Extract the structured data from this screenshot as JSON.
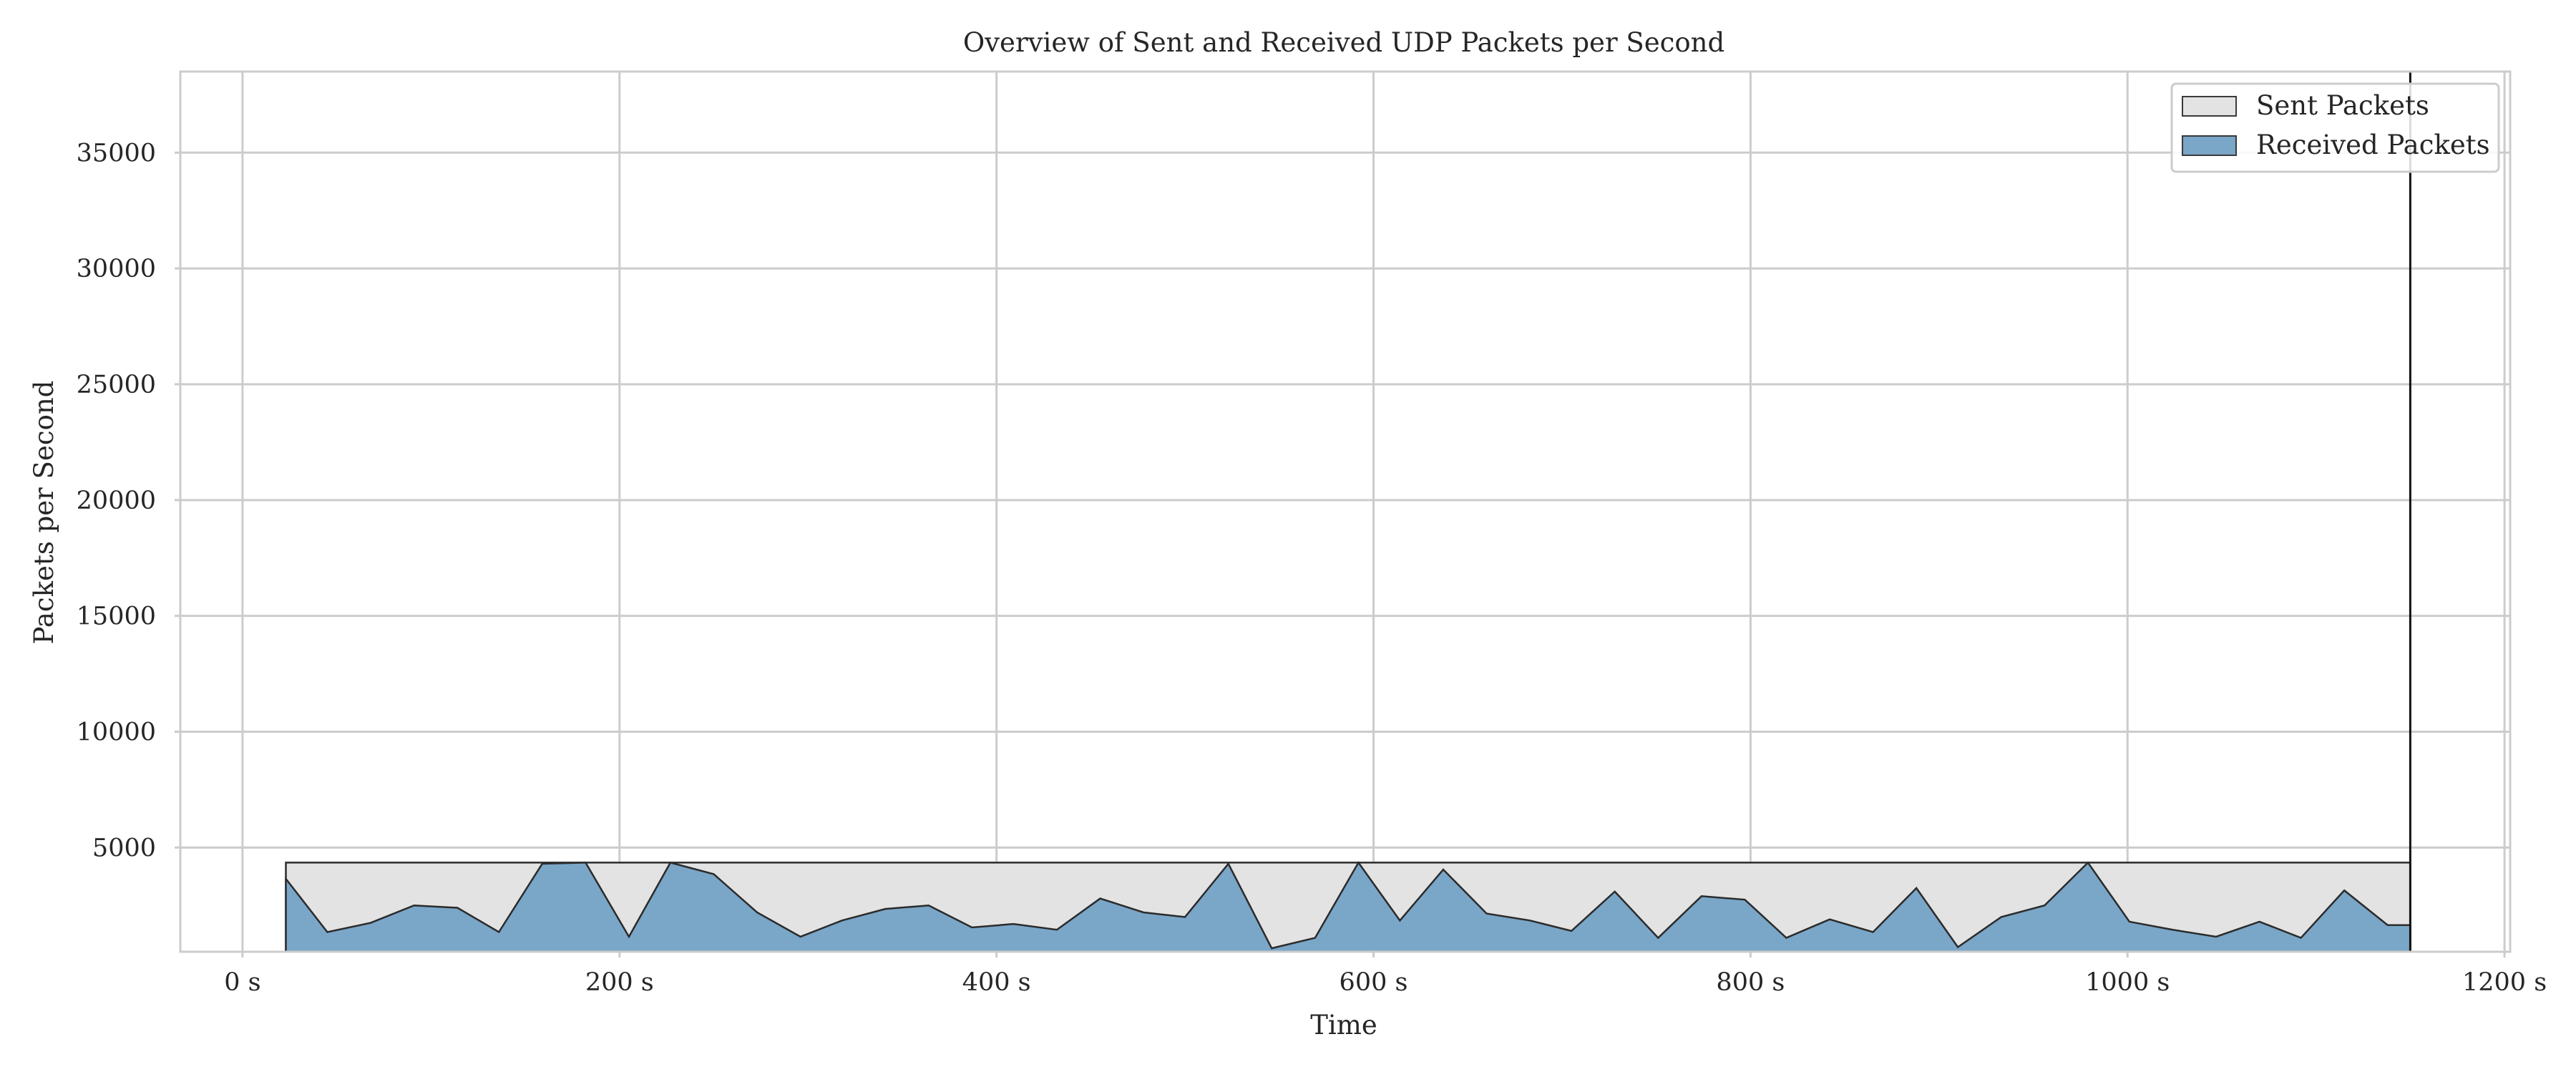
{
  "chart_data": {
    "type": "area",
    "title": "Overview of Sent and Received UDP Packets per Second",
    "xlabel": "Time",
    "ylabel": "Packets per Second",
    "xlim": [
      -33,
      1203
    ],
    "ylim": [
      500,
      38500
    ],
    "x_ticks": [
      0,
      200,
      400,
      600,
      800,
      1000,
      1200
    ],
    "x_tick_labels": [
      "0 s",
      "200 s",
      "400 s",
      "600 s",
      "800 s",
      "1000 s",
      "1200 s"
    ],
    "y_ticks": [
      5000,
      10000,
      15000,
      20000,
      25000,
      30000,
      35000
    ],
    "y_tick_labels": [
      "5000",
      "10000",
      "15000",
      "20000",
      "25000",
      "30000",
      "35000"
    ],
    "grid": true,
    "legend_position": "top-right",
    "x": [
      23,
      45,
      68,
      91,
      114,
      136,
      159,
      182,
      205,
      227,
      250,
      273,
      296,
      318,
      341,
      364,
      387,
      409,
      432,
      455,
      478,
      500,
      523,
      546,
      569,
      592,
      614,
      637,
      660,
      683,
      705,
      728,
      751,
      774,
      797,
      819,
      842,
      865,
      888,
      910,
      933,
      956,
      979,
      1001,
      1024,
      1047,
      1070,
      1092,
      1115,
      1138,
      1150
    ],
    "series": [
      {
        "name": "Sent Packets",
        "color": "#e3e3e3",
        "values": [
          4350,
          4350,
          4350,
          4350,
          4350,
          4350,
          4350,
          4350,
          4350,
          4350,
          4350,
          4350,
          4350,
          4350,
          4350,
          4350,
          4350,
          4350,
          4350,
          4350,
          4350,
          4350,
          4350,
          4350,
          4350,
          4350,
          4350,
          4350,
          4350,
          4350,
          4350,
          4350,
          4350,
          4350,
          4350,
          4350,
          4350,
          4350,
          4350,
          4350,
          4350,
          4350,
          4350,
          4350,
          4350,
          4350,
          4350,
          4350,
          4350,
          4350,
          4350
        ]
      },
      {
        "name": "Received Packets",
        "color": "#7aa6c8",
        "values": [
          3650,
          1350,
          1750,
          2500,
          2400,
          1350,
          4300,
          4350,
          1150,
          4350,
          3850,
          2200,
          1150,
          1850,
          2350,
          2500,
          1550,
          1700,
          1450,
          2800,
          2200,
          2000,
          4300,
          650,
          1100,
          4350,
          1850,
          4050,
          2150,
          1850,
          1400,
          3100,
          1100,
          2900,
          2750,
          1100,
          1900,
          1350,
          3250,
          700,
          2000,
          2500,
          4350,
          1800,
          1450,
          1150,
          1800,
          1100,
          3150,
          1650,
          1650
        ]
      }
    ]
  }
}
